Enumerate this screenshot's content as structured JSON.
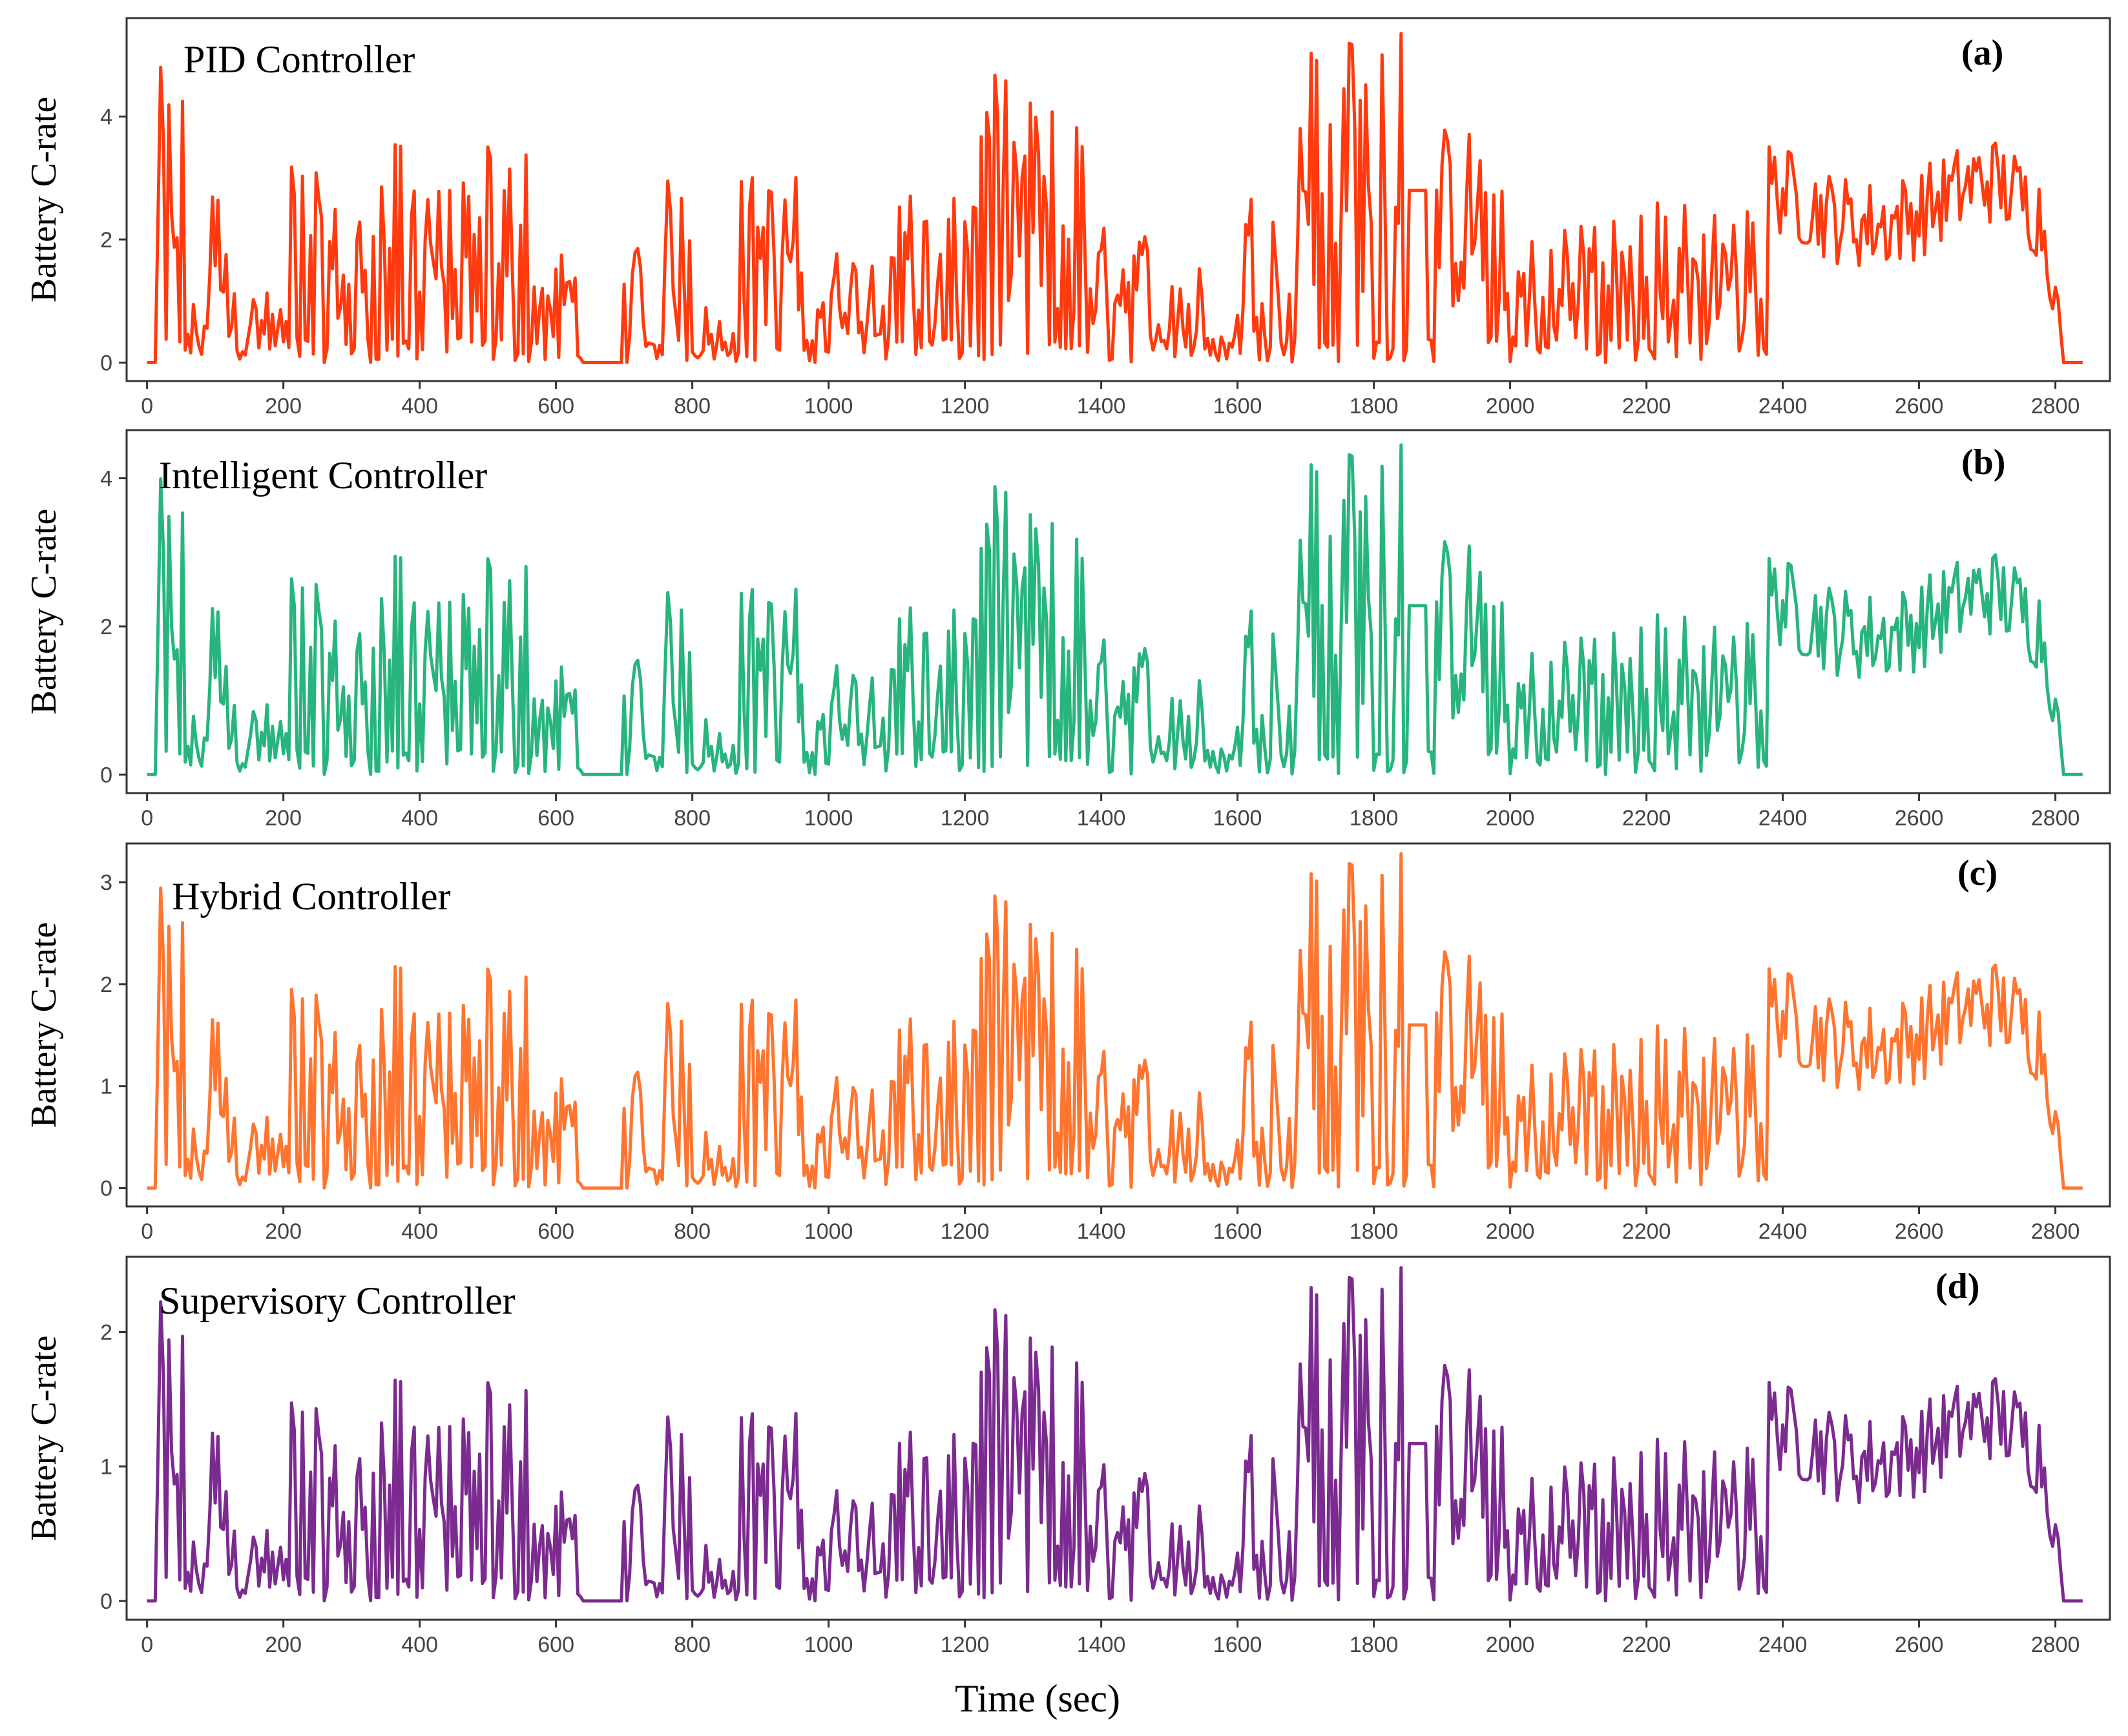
{
  "figure": {
    "xlabel": "Time (sec)",
    "x_ticks": [
      0,
      200,
      400,
      600,
      800,
      1000,
      1200,
      1400,
      1600,
      1800,
      2000,
      2200,
      2400,
      2600,
      2800
    ]
  },
  "chart_data": [
    {
      "type": "line",
      "panel": "(a)",
      "title": "PID Controller",
      "xlabel": "Time (sec)",
      "ylabel": "Battery C-rate",
      "xlim": [
        -30,
        2880
      ],
      "ylim": [
        -0.3,
        5.6
      ],
      "y_ticks": [
        0,
        2,
        4
      ],
      "color": "#ff3a0e",
      "peak": 5.35,
      "plateau": 2.8
    },
    {
      "type": "line",
      "panel": "(b)",
      "title": "Intelligent Controller",
      "xlabel": "Time (sec)",
      "ylabel": "Battery C-rate",
      "xlim": [
        -30,
        2880
      ],
      "ylim": [
        -0.25,
        4.65
      ],
      "y_ticks": [
        0,
        2,
        4
      ],
      "color": "#27b57d",
      "peak": 4.45,
      "plateau": 2.28
    },
    {
      "type": "line",
      "panel": "(c)",
      "title": "Hybrid Controller",
      "xlabel": "Time (sec)",
      "ylabel": "Battery C-rate",
      "xlim": [
        -30,
        2880
      ],
      "ylim": [
        -0.18,
        3.38
      ],
      "y_ticks": [
        0,
        1,
        2,
        3
      ],
      "color": "#ff7530",
      "peak": 3.28,
      "plateau": 1.6
    },
    {
      "type": "line",
      "panel": "(d)",
      "title": "Supervisory Controller",
      "xlabel": "Time (sec)",
      "ylabel": "Battery C-rate",
      "xlim": [
        -30,
        2880
      ],
      "ylim": [
        -0.14,
        2.56
      ],
      "y_ticks": [
        0,
        1,
        2
      ],
      "color": "#7b2b8f",
      "peak": 2.48,
      "plateau": 1.17
    }
  ]
}
